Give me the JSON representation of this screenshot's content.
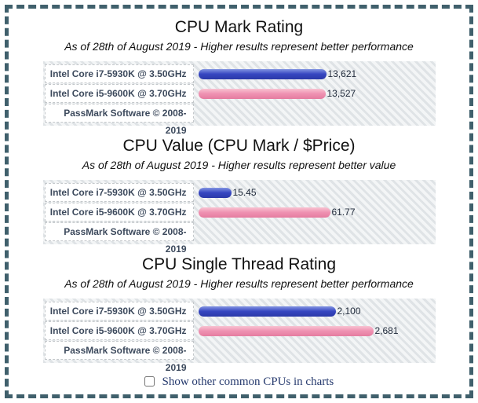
{
  "page": {
    "border_color": "#40606c",
    "checkbox_label": "Show other common CPUs in charts"
  },
  "palette": {
    "blue": {
      "top": "#8294e2",
      "mid": "#3747c1",
      "bottom": "#2a38a8"
    },
    "pink": {
      "top": "#f8c3d2",
      "mid": "#ef92b2",
      "bottom": "#e57ca0"
    }
  },
  "chart_data": [
    {
      "type": "bar",
      "title": "CPU Mark Rating",
      "subtitle": "As of 28th of August 2019 - Higher results represent better performance",
      "categories": [
        "Intel Core i7-5930K @ 3.50GHz",
        "Intel Core i5-9600K @ 3.70GHz"
      ],
      "values": [
        13621,
        13527
      ],
      "value_labels": [
        "13,621",
        "13,527"
      ],
      "bar_colors": [
        "blue",
        "pink"
      ],
      "xlim": [
        0,
        25000
      ],
      "grid": false,
      "legend": "none",
      "footer": "PassMark Software © 2008-2019"
    },
    {
      "type": "bar",
      "title": "CPU Value (CPU Mark / $Price)",
      "subtitle": "As of 28th of August 2019 - Higher results represent better value",
      "categories": [
        "Intel Core i7-5930K @ 3.50GHz",
        "Intel Core i5-9600K @ 3.70GHz"
      ],
      "values": [
        15.45,
        61.77
      ],
      "value_labels": [
        "15.45",
        "61.77"
      ],
      "bar_colors": [
        "blue",
        "pink"
      ],
      "xlim": [
        0,
        110
      ],
      "grid": false,
      "legend": "none",
      "footer": "PassMark Software © 2008-2019"
    },
    {
      "type": "bar",
      "title": "CPU Single Thread Rating",
      "subtitle": "As of 28th of August 2019 - Higher results represent better performance",
      "categories": [
        "Intel Core i7-5930K @ 3.50GHz",
        "Intel Core i5-9600K @ 3.70GHz"
      ],
      "values": [
        2100,
        2681
      ],
      "value_labels": [
        "2,100",
        "2,681"
      ],
      "bar_colors": [
        "blue",
        "pink"
      ],
      "xlim": [
        0,
        3600
      ],
      "grid": false,
      "legend": "none",
      "footer": "PassMark Software © 2008-2019"
    }
  ]
}
